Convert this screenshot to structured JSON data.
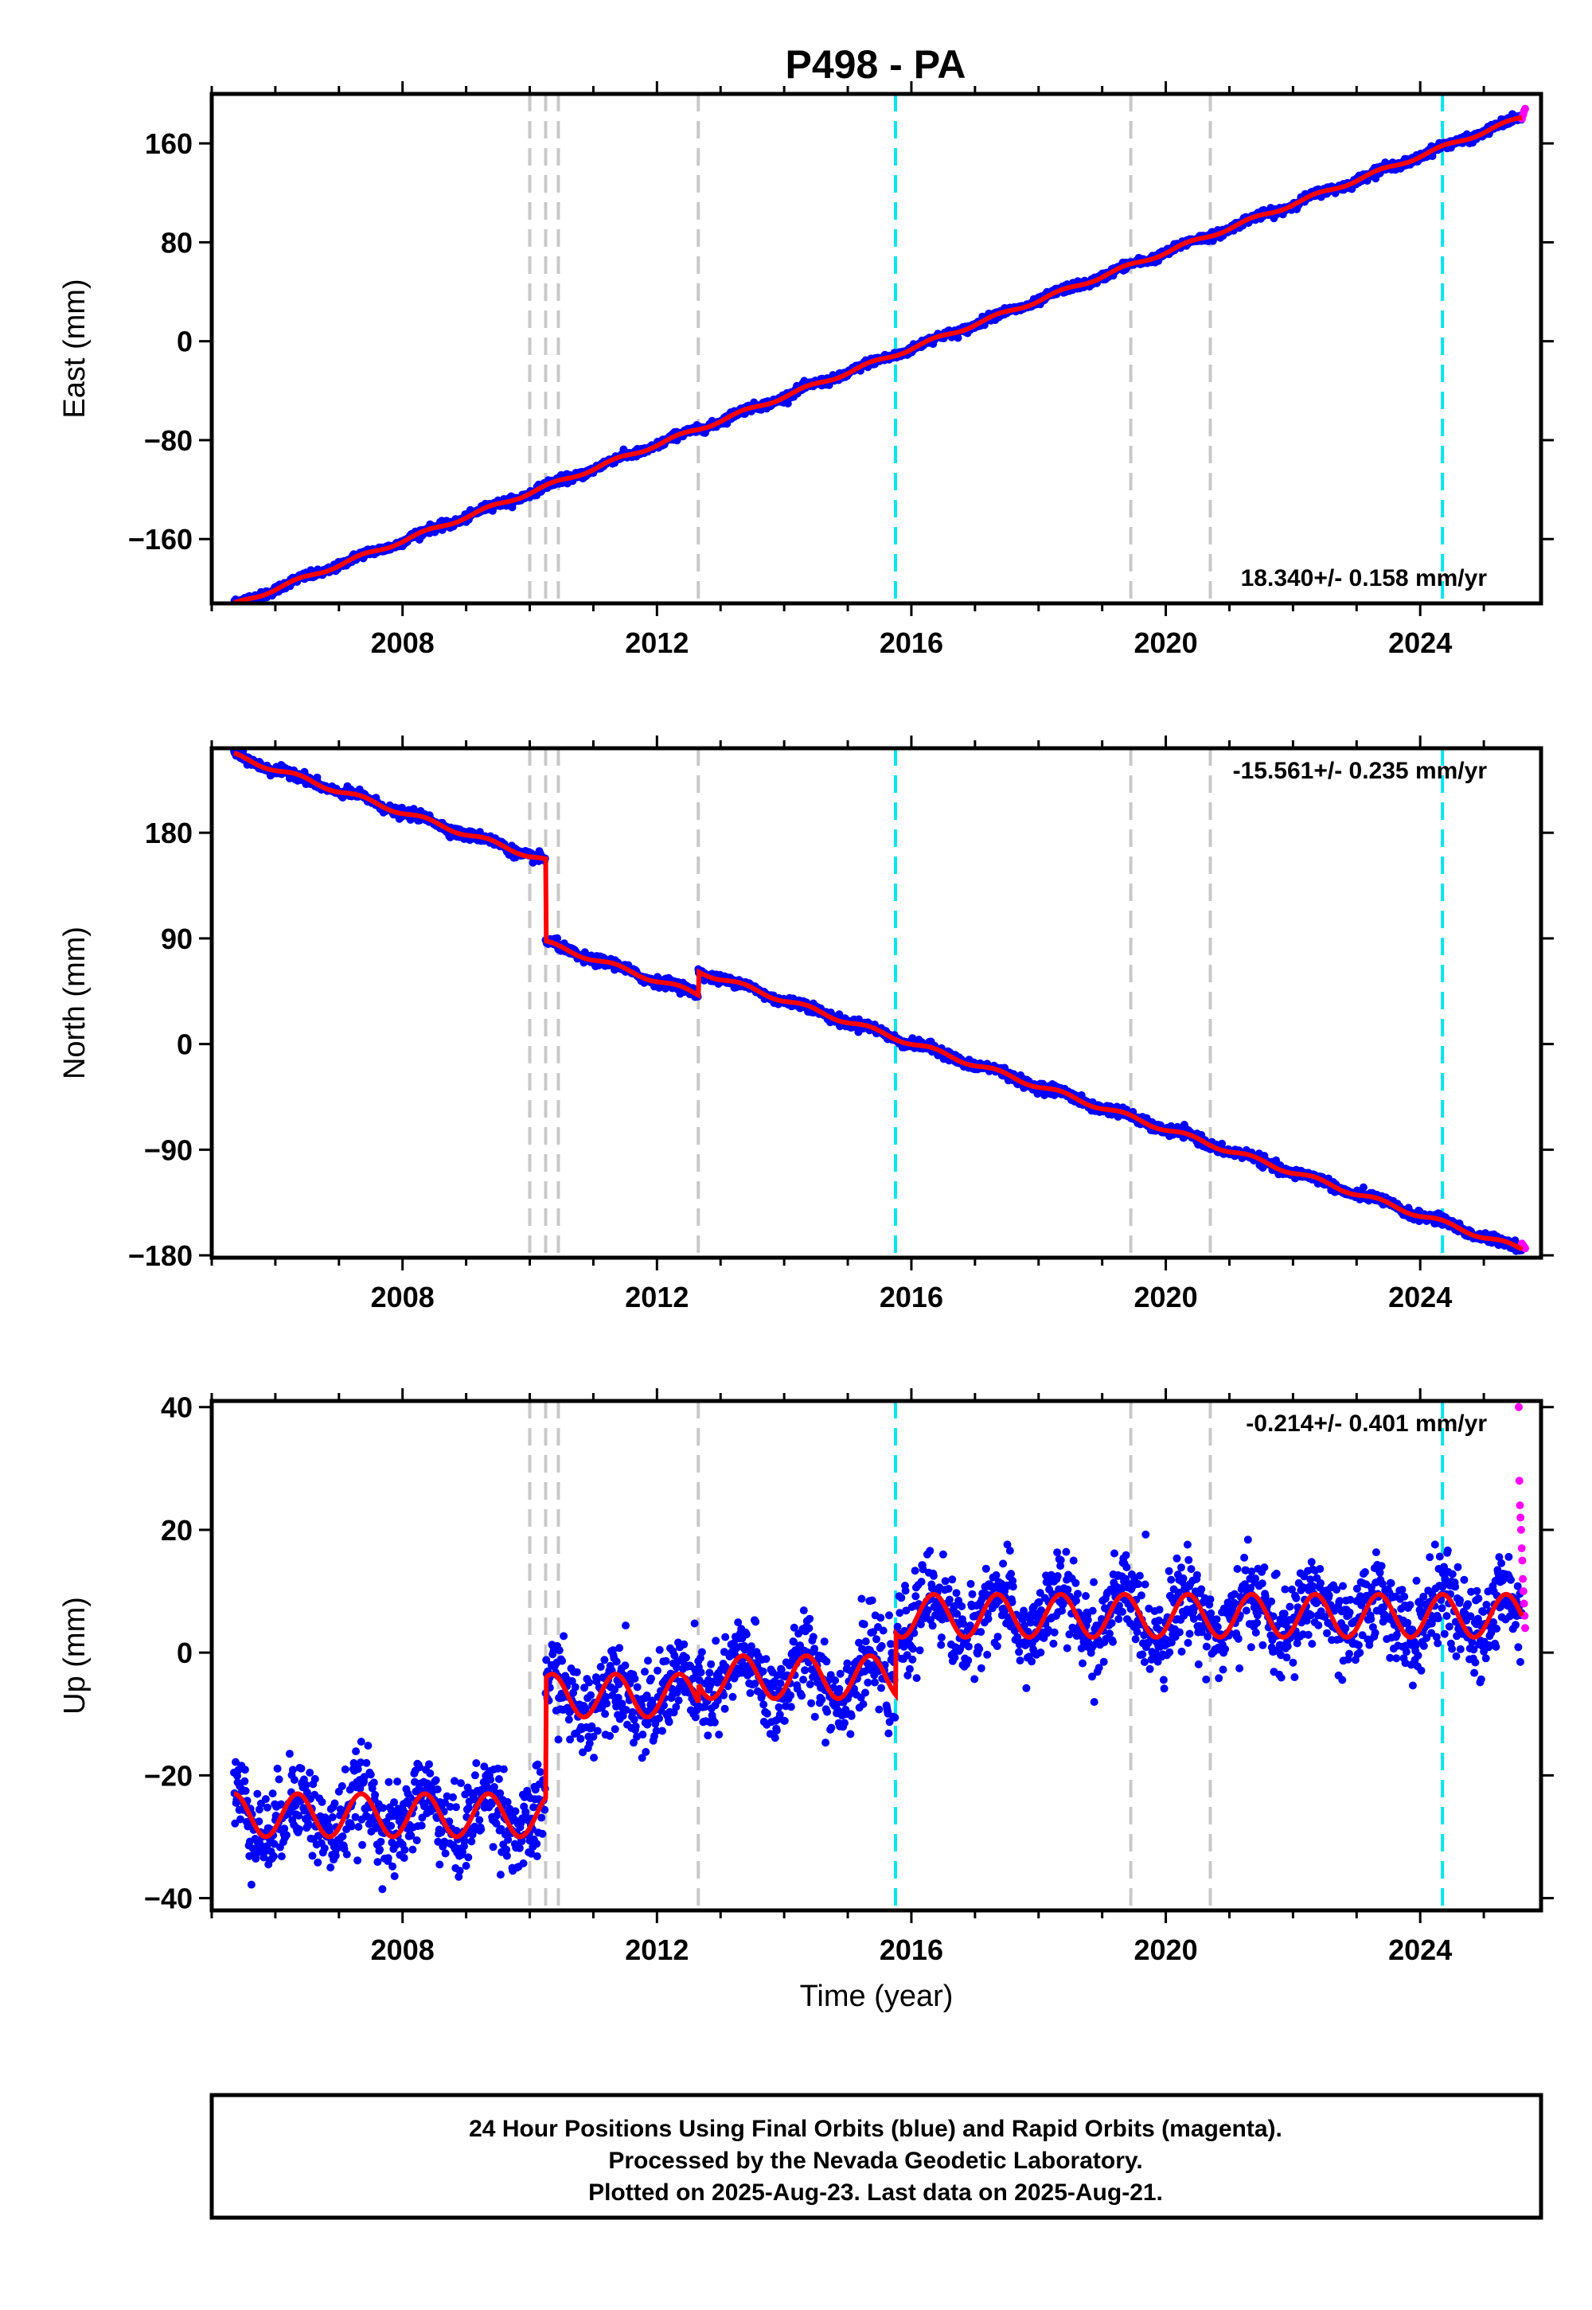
{
  "title": "P498 - PA",
  "footer": {
    "line1": "24 Hour Positions Using Final Orbits (blue) and Rapid Orbits (magenta).",
    "line2": "Processed by the Nevada Geodetic Laboratory.",
    "line3": "Plotted on 2025-Aug-23. Last data on 2025-Aug-21."
  },
  "colors": {
    "final_orbits": "#0000ff",
    "rapid_orbits": "#ff00ff",
    "model_fit": "#ff0000",
    "gray_event": "#c8c8c8",
    "cyan_event": "#00e5ee"
  },
  "chart_data": [
    {
      "type": "scatter",
      "component": "east",
      "ylabel": "East (mm)",
      "xlabel": "",
      "xlim": [
        2005.0,
        2025.9
      ],
      "ylim": [
        -212,
        200
      ],
      "x_ticks": [
        2008,
        2012,
        2016,
        2020,
        2024
      ],
      "y_ticks": [
        -160,
        -80,
        0,
        80,
        160
      ],
      "rate_label": "18.340+/- 0.158 mm/yr",
      "trend": {
        "start": [
          2005.35,
          -213
        ],
        "end": [
          2025.6,
          181
        ]
      },
      "seasonal_amplitude": 1.5,
      "scatter_sigma": 1.6,
      "offsets": [],
      "gray_events": [
        2010.0,
        2010.25,
        2010.45,
        2012.65,
        2019.45,
        2020.7
      ],
      "cyan_events": [
        2015.75,
        2024.35
      ],
      "rapid_range": [
        2025.6,
        2025.65
      ],
      "rapid_y_extra": [
        180,
        183,
        186,
        188
      ]
    },
    {
      "type": "scatter",
      "component": "north",
      "ylabel": "North (mm)",
      "xlabel": "",
      "xlim": [
        2005.0,
        2025.9
      ],
      "ylim": [
        -182,
        252
      ],
      "x_ticks": [
        2008,
        2012,
        2016,
        2020,
        2024
      ],
      "y_ticks": [
        -180,
        -90,
        0,
        90,
        180
      ],
      "rate_label": "-15.561+/- 0.235 mm/yr",
      "trend": {
        "start": [
          2005.35,
          246
        ],
        "end": [
          2025.6,
          -175
        ]
      },
      "seasonal_amplitude": 2.0,
      "scatter_sigma": 2.0,
      "offsets": [
        {
          "year": 2010.25,
          "jump": -70
        },
        {
          "year": 2012.65,
          "jump": 20
        }
      ],
      "gray_events": [
        2010.0,
        2010.25,
        2010.45,
        2012.65,
        2019.45,
        2020.7
      ],
      "cyan_events": [
        2015.75,
        2024.35
      ],
      "rapid_range": [
        2025.6,
        2025.65
      ],
      "rapid_y_extra": [
        -170,
        -172,
        -174
      ]
    },
    {
      "type": "scatter",
      "component": "up",
      "ylabel": "Up (mm)",
      "xlabel": "Time (year)",
      "xlim": [
        2005.0,
        2025.9
      ],
      "ylim": [
        -42,
        41
      ],
      "x_ticks": [
        2008,
        2012,
        2016,
        2020,
        2024
      ],
      "y_ticks": [
        -40,
        -20,
        0,
        20,
        40
      ],
      "rate_label": "-0.214+/- 0.401 mm/yr",
      "segments": [
        {
          "from": 2005.35,
          "to": 2010.25,
          "base": -26.5
        },
        {
          "from": 2010.25,
          "to": 2012.65,
          "base": -7
        },
        {
          "from": 2012.65,
          "to": 2015.75,
          "base": -4
        },
        {
          "from": 2015.75,
          "to": 2025.6,
          "base": 6
        }
      ],
      "seasonal_amplitude": 3.5,
      "scatter_sigma": 3.5,
      "gray_events": [
        2010.0,
        2010.25,
        2010.45,
        2012.65,
        2019.45,
        2020.7
      ],
      "cyan_events": [
        2015.75,
        2024.35
      ],
      "rapid_range": [
        2025.55,
        2025.65
      ],
      "rapid_y_extra": [
        40,
        28,
        24,
        22,
        20,
        17,
        15,
        12,
        10,
        8,
        6,
        4
      ]
    }
  ]
}
